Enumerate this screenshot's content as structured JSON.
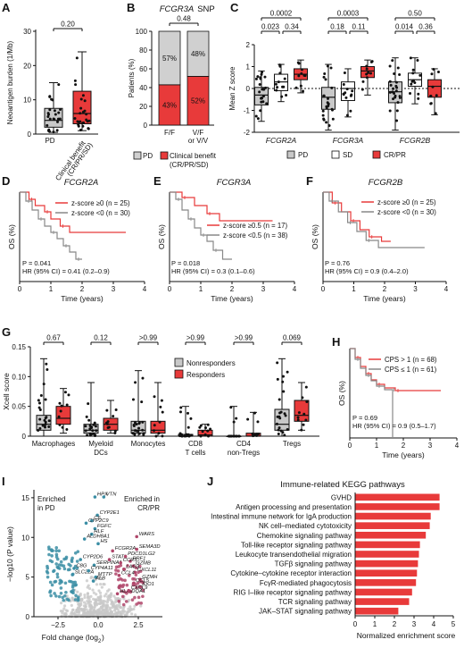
{
  "chart_data": [
    {
      "panel": "A",
      "type": "box",
      "ylabel": "Neoantigen burden (1/Mb)",
      "ylim": [
        0,
        30
      ],
      "yticks": [
        0,
        10,
        20,
        30
      ],
      "categories": [
        "PD",
        "Clinical benefit (CR/PR/SD)"
      ],
      "colors": [
        "#c8c8c8",
        "#e83a3a"
      ],
      "boxes": [
        {
          "min": 0.5,
          "q1": 2,
          "median": 4,
          "q3": 7.5,
          "max": 15
        },
        {
          "min": 1,
          "q1": 3,
          "median": 6,
          "q3": 12.5,
          "max": 24
        }
      ],
      "pvalue": "0.20"
    },
    {
      "panel": "B",
      "type": "stacked_bar",
      "title": "FCGR3A SNP",
      "ylabel": "Patients (%)",
      "ylim": [
        0,
        100
      ],
      "yticks": [
        0,
        20,
        40,
        60,
        80,
        100
      ],
      "categories": [
        "F/F",
        "V/F or V/V"
      ],
      "series": [
        {
          "name": "Clinical benefit (CR/PR/SD)",
          "color": "#e83a3a",
          "values": [
            43,
            52
          ],
          "labels": [
            "43%",
            "52%"
          ]
        },
        {
          "name": "PD",
          "color": "#d0d0d0",
          "values": [
            57,
            48
          ],
          "labels": [
            "57%",
            "48%"
          ]
        }
      ],
      "pvalue": "0.48",
      "legend": [
        "PD",
        "Clinical benefit (CR/PR/SD)"
      ]
    },
    {
      "panel": "C",
      "type": "box",
      "ylabel": "Mean Z score",
      "ylim": [
        -2,
        2
      ],
      "yticks": [
        -2,
        -1,
        0,
        1,
        2
      ],
      "groups": [
        "FCGR2A",
        "FCGR3A",
        "FCGR2B"
      ],
      "legend": [
        "PD",
        "SD",
        "CR/PR"
      ],
      "colors": [
        "#c8c8c8",
        "#ffffff",
        "#e83a3a"
      ],
      "boxes": [
        [
          {
            "min": -1.5,
            "q1": -0.75,
            "median": -0.3,
            "q3": 0.05,
            "max": 0.8
          },
          {
            "min": -0.6,
            "q1": -0.1,
            "median": 0.3,
            "q3": 0.65,
            "max": 1.1
          },
          {
            "min": -0.2,
            "q1": 0.4,
            "median": 0.65,
            "q3": 0.9,
            "max": 1.3
          }
        ],
        [
          {
            "min": -1.9,
            "q1": -0.95,
            "median": -0.4,
            "q3": 0.05,
            "max": 1.1
          },
          {
            "min": -1.3,
            "q1": -0.55,
            "median": 0.0,
            "q3": 0.3,
            "max": 0.9
          },
          {
            "min": -0.3,
            "q1": 0.5,
            "median": 0.8,
            "q3": 1.0,
            "max": 1.3
          }
        ],
        [
          {
            "min": -1.9,
            "q1": -0.65,
            "median": -0.15,
            "q3": 0.3,
            "max": 1.4
          },
          {
            "min": -0.7,
            "q1": 0.1,
            "median": 0.4,
            "q3": 0.7,
            "max": 1.4
          },
          {
            "min": -1.2,
            "q1": -0.4,
            "median": 0.1,
            "q3": 0.4,
            "max": 0.9
          }
        ]
      ],
      "pvalues": [
        [
          "0.0002",
          "0.023",
          "0.34"
        ],
        [
          "0.0003",
          "0.18",
          "0.11"
        ],
        [
          "0.50",
          "0.014",
          "0.36"
        ]
      ]
    },
    {
      "panel": "D",
      "type": "km",
      "title": "FCGR2A",
      "ylabel": "OS (%)",
      "xlabel": "Time (years)",
      "xlim": [
        0,
        4
      ],
      "ylim": [
        0,
        100
      ],
      "xticks": [
        0,
        1,
        2,
        3,
        4
      ],
      "series": [
        {
          "name": "z-score ≥0 (n = 25)",
          "color": "#e83a3a",
          "x": [
            0,
            0.3,
            0.5,
            0.8,
            1.0,
            1.3,
            1.6,
            3.4
          ],
          "y": [
            100,
            92,
            85,
            78,
            70,
            62,
            55,
            55
          ]
        },
        {
          "name": "z-score <0 (n = 30)",
          "color": "#888888",
          "x": [
            0,
            0.2,
            0.4,
            0.6,
            0.8,
            1.0,
            1.2,
            1.4,
            1.6,
            1.8,
            2.0
          ],
          "y": [
            100,
            90,
            80,
            70,
            62,
            55,
            48,
            40,
            33,
            25,
            25
          ]
        }
      ],
      "stats": [
        "P = 0.041",
        "HR (95% CI) = 0.41 (0.2–0.9)"
      ]
    },
    {
      "panel": "E",
      "type": "km",
      "title": "FCGR3A",
      "ylabel": "OS (%)",
      "xlabel": "Time (years)",
      "xlim": [
        0,
        4
      ],
      "ylim": [
        0,
        100
      ],
      "xticks": [
        0,
        1,
        2,
        3,
        4
      ],
      "series": [
        {
          "name": "z-score ≥0.5 (n = 17)",
          "color": "#e83a3a",
          "x": [
            0,
            0.4,
            0.8,
            1.2,
            1.6,
            3.3
          ],
          "y": [
            100,
            94,
            85,
            76,
            68,
            68
          ]
        },
        {
          "name": "z-score <0.5 (n = 38)",
          "color": "#888888",
          "x": [
            0,
            0.2,
            0.4,
            0.6,
            0.8,
            1.0,
            1.2,
            1.4,
            1.7,
            2.0
          ],
          "y": [
            100,
            92,
            80,
            70,
            60,
            52,
            45,
            35,
            25,
            25
          ]
        }
      ],
      "stats": [
        "P = 0.018",
        "HR (95% CI) = 0.3 (0.1–0.6)"
      ]
    },
    {
      "panel": "F",
      "type": "km",
      "title": "FCGR2B",
      "ylabel": "OS (%)",
      "xlabel": "Time (years)",
      "xlim": [
        0,
        4
      ],
      "ylim": [
        0,
        100
      ],
      "xticks": [
        0,
        1,
        2,
        3,
        4
      ],
      "series": [
        {
          "name": "z-score ≥0 (n = 25)",
          "color": "#e83a3a",
          "x": [
            0,
            0.3,
            0.6,
            0.9,
            1.2,
            1.5,
            1.9,
            2.2
          ],
          "y": [
            100,
            88,
            78,
            68,
            58,
            50,
            45,
            45
          ]
        },
        {
          "name": "z-score <0 (n = 30)",
          "color": "#888888",
          "x": [
            0,
            0.2,
            0.5,
            0.8,
            1.1,
            1.4,
            1.8,
            3.3
          ],
          "y": [
            100,
            90,
            78,
            66,
            56,
            46,
            38,
            38
          ]
        }
      ],
      "stats": [
        "P = 0.76",
        "HR (95% CI) = 0.9 (0.4–2.0)"
      ]
    },
    {
      "panel": "G",
      "type": "box",
      "ylabel": "Xcell score",
      "ylim": [
        0,
        0.15
      ],
      "yticks": [
        0,
        0.05,
        0.1,
        0.15
      ],
      "yticklabels": [
        "0",
        "0.05",
        "0.10",
        "0.15"
      ],
      "categories": [
        [
          "Macrophages"
        ],
        [
          "Myeloid",
          "DCs"
        ],
        [
          "Monocytes"
        ],
        [
          "CD8",
          "T cells"
        ],
        [
          "CD4",
          "non-Tregs"
        ],
        [
          "Tregs"
        ]
      ],
      "legend": [
        "Nonresponders",
        "Responders"
      ],
      "colors": [
        "#c8c8c8",
        "#e83a3a"
      ],
      "boxes": [
        [
          {
            "min": 0,
            "q1": 0.01,
            "median": 0.02,
            "q3": 0.035,
            "max": 0.13
          },
          {
            "min": 0.005,
            "q1": 0.02,
            "median": 0.03,
            "q3": 0.05,
            "max": 0.08
          }
        ],
        [
          {
            "min": 0,
            "q1": 0.005,
            "median": 0.01,
            "q3": 0.02,
            "max": 0.09
          },
          {
            "min": 0.005,
            "q1": 0.01,
            "median": 0.02,
            "q3": 0.03,
            "max": 0.06
          }
        ],
        [
          {
            "min": 0,
            "q1": 0.005,
            "median": 0.01,
            "q3": 0.025,
            "max": 0.11
          },
          {
            "min": 0,
            "q1": 0.005,
            "median": 0.01,
            "q3": 0.025,
            "max": 0.09
          }
        ],
        [
          {
            "min": 0,
            "q1": 0,
            "median": 0,
            "q3": 0.003,
            "max": 0.05
          },
          {
            "min": 0,
            "q1": 0,
            "median": 0.002,
            "q3": 0.01,
            "max": 0.02
          }
        ],
        [
          {
            "min": 0,
            "q1": 0,
            "median": 0,
            "q3": 0,
            "max": 0.05
          },
          {
            "min": 0,
            "q1": 0,
            "median": 0,
            "q3": 0.005,
            "max": 0.04
          }
        ],
        [
          {
            "min": 0,
            "q1": 0.01,
            "median": 0.02,
            "q3": 0.045,
            "max": 0.13
          },
          {
            "min": 0.01,
            "q1": 0.025,
            "median": 0.035,
            "q3": 0.06,
            "max": 0.09
          }
        ]
      ],
      "pvalues": [
        "0.67",
        "0.12",
        ">0.99",
        ">0.99",
        ">0.99",
        "0.069"
      ]
    },
    {
      "panel": "H",
      "type": "km",
      "ylabel": "OS (%)",
      "xlabel": "Time (years)",
      "xlim": [
        0,
        4
      ],
      "ylim": [
        0,
        100
      ],
      "xticks": [
        0,
        1,
        2,
        3,
        4
      ],
      "series": [
        {
          "name": "CPS > 1 (n = 68)",
          "color": "#e83a3a",
          "x": [
            0,
            0.2,
            0.4,
            0.6,
            0.8,
            1.0,
            1.3,
            1.7,
            3.4
          ],
          "y": [
            100,
            90,
            80,
            72,
            65,
            60,
            56,
            53,
            53
          ]
        },
        {
          "name": "CPS ≤ 1 (n = 61)",
          "color": "#888888",
          "x": [
            0,
            0.2,
            0.4,
            0.6,
            0.8,
            1.0,
            1.3,
            1.55,
            1.6
          ],
          "y": [
            100,
            88,
            78,
            70,
            64,
            58,
            54,
            54,
            0
          ]
        }
      ],
      "stats": [
        "P = 0.69",
        "HR (95% CI) = 0.9 (0.5–1.7)"
      ]
    },
    {
      "panel": "I",
      "type": "scatter",
      "xlabel": "Fold change (log2)",
      "ylabel": "−log10 (P value)",
      "xlim": [
        -4,
        4
      ],
      "ylim": [
        0,
        16
      ],
      "xticks": [
        -2.5,
        0,
        2.5
      ],
      "xticklabels": [
        "−2.5",
        "0.0",
        "2.5"
      ],
      "yticks": [
        0,
        5,
        10,
        15
      ],
      "annotations": [
        "Enriched in PD",
        "Enriched in CR/PR"
      ],
      "colors": {
        "pd": "#3b8ea5",
        "crpr": "#b0476b",
        "ns": "#c8c8c8"
      },
      "labeled_points": [
        {
          "gene": "HPX",
          "x": -0.2,
          "y": 15.1
        },
        {
          "gene": "VTN",
          "x": 0.35,
          "y": 15.1
        },
        {
          "gene": "CYP2E1",
          "x": -0.05,
          "y": 12.8
        },
        {
          "gene": "C6",
          "x": -0.4,
          "y": 12.1
        },
        {
          "gene": "CYP2C9",
          "x": -0.75,
          "y": 11.8
        },
        {
          "gene": "FGFC",
          "x": -0.2,
          "y": 11.1
        },
        {
          "gene": "HLF",
          "x": -0.4,
          "y": 10.4
        },
        {
          "gene": "ALDH8A1",
          "x": -0.85,
          "y": 9.8
        },
        {
          "gene": "HS",
          "x": 0.0,
          "y": 9.2
        },
        {
          "gene": "CYP2D6",
          "x": -1.1,
          "y": 7.2
        },
        {
          "gene": "C8G",
          "x": -1.5,
          "y": 6.1
        },
        {
          "gene": "SLC22A",
          "x": -1.6,
          "y": 5.3
        },
        {
          "gene": "SERPINA1",
          "x": -0.25,
          "y": 6.5
        },
        {
          "gene": "CYP4A11",
          "x": -0.6,
          "y": 5.8
        },
        {
          "gene": "MTTP",
          "x": -0.15,
          "y": 5.0
        },
        {
          "gene": "ALB",
          "x": -0.3,
          "y": 4.5
        },
        {
          "gene": "STAT1",
          "x": 0.7,
          "y": 7.2
        },
        {
          "gene": "FCGR2A",
          "x": 0.9,
          "y": 8.3
        },
        {
          "gene": "WARS",
          "x": 2.4,
          "y": 10.1
        },
        {
          "gene": "SEMA3D",
          "x": 2.4,
          "y": 8.5
        },
        {
          "gene": "PDCD1LG2",
          "x": 1.7,
          "y": 7.6
        },
        {
          "gene": "PRF1",
          "x": 2.0,
          "y": 7.0
        },
        {
          "gene": "CCR5",
          "x": 1.4,
          "y": 6.8
        },
        {
          "gene": "GZMB",
          "x": 2.2,
          "y": 6.4
        },
        {
          "gene": "LAG3",
          "x": 1.6,
          "y": 6.0
        },
        {
          "gene": "CXCL11",
          "x": 2.3,
          "y": 5.6
        },
        {
          "gene": "CCL4",
          "x": 1.3,
          "y": 5.2
        },
        {
          "gene": "GZMH",
          "x": 2.6,
          "y": 4.7
        },
        {
          "gene": "CCL5",
          "x": 2.2,
          "y": 4.2
        },
        {
          "gene": "IDO1",
          "x": 2.6,
          "y": 3.8
        },
        {
          "gene": "HLA-DQA1",
          "x": 1.2,
          "y": 2.9
        },
        {
          "gene": "CXCL9",
          "x": 1.9,
          "y": 3.3
        }
      ]
    },
    {
      "panel": "J",
      "type": "bar",
      "orientation": "horizontal",
      "title": "Immune-related KEGG pathways",
      "xlabel": "Normalized enrichment score",
      "xlim": [
        0,
        5
      ],
      "xticks": [
        0,
        1,
        2,
        3,
        4,
        5
      ],
      "color": "#e83a3a",
      "categories": [
        "GVHD",
        "Antigen processing and presentation",
        "Intestinal immune network for IgA production",
        "NK cell–mediated cytotoxicity",
        "Chemokine signaling pathway",
        "Toll-like receptor signaling pathway",
        "Leukocyte transendothelial migration",
        "TGFβ signaling pathway",
        "Cytokine–cytokine receptor interaction",
        "FcγR-mediated phagocytosis",
        "RIG I–like receptor signaling pathway",
        "TCR signaling pathway",
        "JAK–STAT signaling pathway"
      ],
      "values": [
        4.3,
        4.3,
        3.85,
        3.8,
        3.6,
        3.3,
        3.25,
        3.2,
        3.15,
        3.1,
        2.9,
        2.75,
        2.2
      ]
    }
  ]
}
